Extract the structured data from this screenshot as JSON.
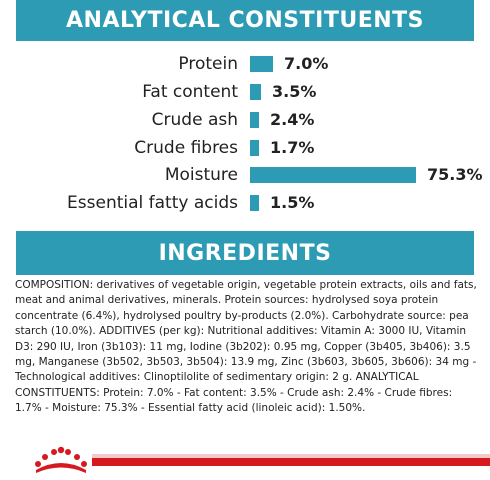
{
  "analytical": {
    "title": "ANALYTICAL CONSTITUENTS",
    "items": [
      {
        "label": "Protein",
        "value": "7.0%",
        "percent": 7.0
      },
      {
        "label": "Fat content",
        "value": "3.5%",
        "percent": 3.5
      },
      {
        "label": "Crude ash",
        "value": "2.4%",
        "percent": 2.4
      },
      {
        "label": "Crude fibres",
        "value": "1.7%",
        "percent": 1.7
      },
      {
        "label": "Moisture",
        "value": "75.3%",
        "percent": 75.3
      },
      {
        "label": "Essential fatty acids",
        "value": "1.5%",
        "percent": 1.5
      }
    ]
  },
  "ingredients": {
    "title": "INGREDIENTS",
    "composition": "COMPOSITION: derivatives of vegetable origin, vegetable protein extracts, oils and fats, meat and animal derivatives, minerals. Protein sources: hydrolysed soya protein concentrate (6.4%), hydrolysed poultry by-products (2.0%). Carbohydrate source: pea starch (10.0%). ADDITIVES (per kg): Nutritional additives: Vitamin A: 3000 IU, Vitamin D3: 290 IU, Iron (3b103): 11 mg, Iodine (3b202): 0.95 mg, Copper (3b405, 3b406): 3.5 mg, Manganese (3b502, 3b503, 3b504): 13.9 mg, Zinc (3b603, 3b605, 3b606): 34 mg - Technological additives: Clinoptilolite of sedimentary origin: 2 g. ANALYTICAL CONSTITUENTS: Protein: 7.0% - Fat content: 3.5% - Crude ash: 2.4% - Crude fibres: 1.7% - Moisture: 75.3% - Essential fatty acid (linoleic acid): 1.50%."
  },
  "colors": {
    "accent": "#2d9bb3",
    "brand_red": "#d6191f"
  },
  "footer": {
    "logo_icon": "crown-icon"
  }
}
